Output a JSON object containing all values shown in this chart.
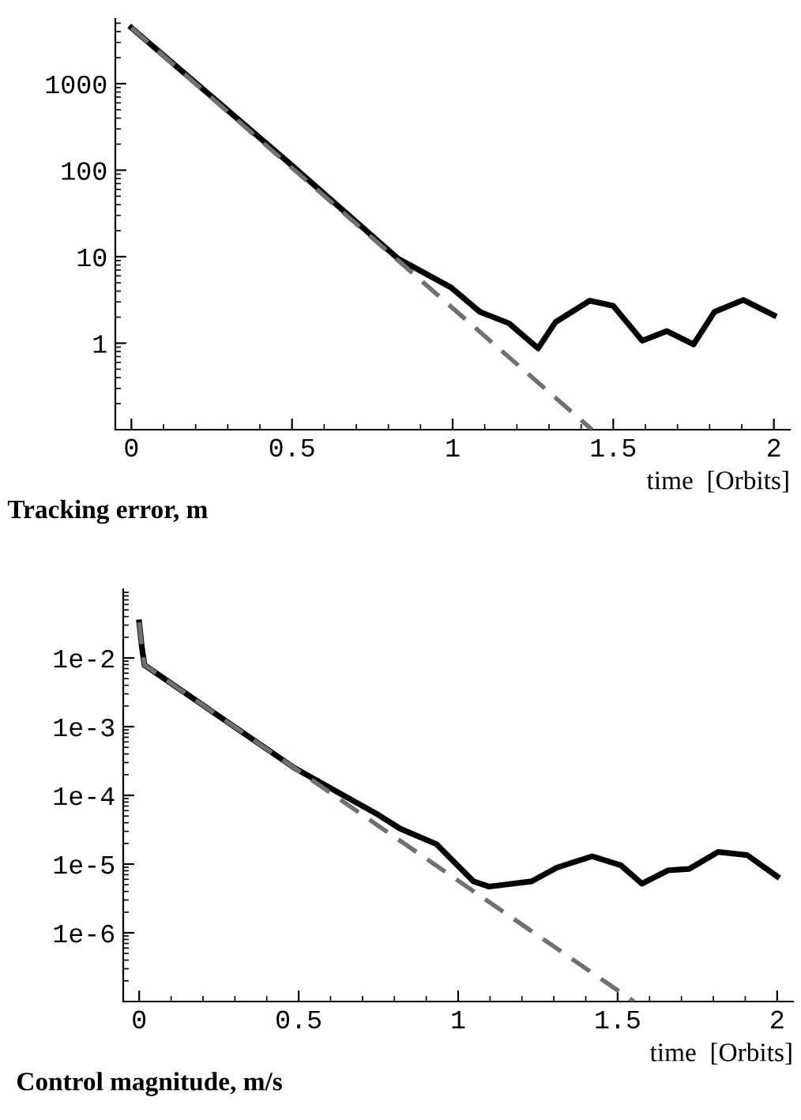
{
  "chart_data": [
    {
      "type": "line",
      "title": "Tracking error, m",
      "xlabel": "time  [Orbits]",
      "log": "y",
      "xlim": [
        -0.05,
        2.05
      ],
      "ylim": [
        0.1,
        5600
      ],
      "xticks": [
        0,
        0.5,
        1,
        1.5,
        2
      ],
      "yticks": [
        1,
        10,
        100,
        1000
      ],
      "grid": false,
      "legend": false,
      "series": [
        {
          "color": "#000000",
          "line_style": "solid",
          "x": [
            0,
            0.49,
            0.83,
            0.995,
            1.085,
            1.175,
            1.266,
            1.32,
            1.427,
            1.5,
            1.59,
            1.667,
            1.75,
            1.815,
            1.905,
            2.0
          ],
          "values": [
            4430,
            122,
            9.5,
            4.4,
            2.3,
            1.7,
            0.87,
            1.75,
            3.1,
            2.7,
            1.07,
            1.38,
            0.97,
            2.3,
            3.16,
            2.1
          ]
        },
        {
          "color": "#707070",
          "line_style": "dashed",
          "x": [
            0,
            1.434
          ],
          "values": [
            4430,
            0.1
          ]
        }
      ]
    },
    {
      "type": "line",
      "title": "Control magnitude, m/s",
      "xlabel": "time  [Orbits]",
      "log": "y",
      "xlim": [
        -0.05,
        2.05
      ],
      "ylim": [
        1e-07,
        0.1
      ],
      "xticks": [
        0,
        0.5,
        1,
        1.5,
        2
      ],
      "yticks": [
        {
          "value": 1e-06,
          "label": "1e-6"
        },
        {
          "value": 1e-05,
          "label": "1e-5"
        },
        {
          "value": 0.0001,
          "label": "1e-4"
        },
        {
          "value": 0.001,
          "label": "1e-3"
        },
        {
          "value": 0.01,
          "label": "1e-2"
        }
      ],
      "grid": false,
      "legend": false,
      "series": [
        {
          "color": "#000000",
          "line_style": "solid",
          "x": [
            0,
            0.008,
            0.0165,
            0.487,
            0.75,
            0.817,
            0.932,
            1.048,
            1.097,
            1.23,
            1.31,
            1.42,
            1.51,
            1.576,
            1.658,
            1.724,
            1.815,
            1.906,
            2.0
          ],
          "values": [
            0.033,
            0.015,
            0.0079,
            0.00025,
            5.2e-05,
            3.3e-05,
            1.95e-05,
            5.6e-06,
            4.7e-06,
            5.6e-06,
            8.9e-06,
            1.3e-05,
            9.6e-06,
            5.2e-06,
            8.1e-06,
            8.5e-06,
            1.5e-05,
            1.35e-05,
            6.6e-06
          ]
        },
        {
          "color": "#707070",
          "line_style": "dashed",
          "x": [
            0,
            0.008,
            0.0165,
            1.551
          ],
          "values": [
            0.033,
            0.015,
            0.0079,
            1e-07
          ]
        }
      ]
    }
  ]
}
